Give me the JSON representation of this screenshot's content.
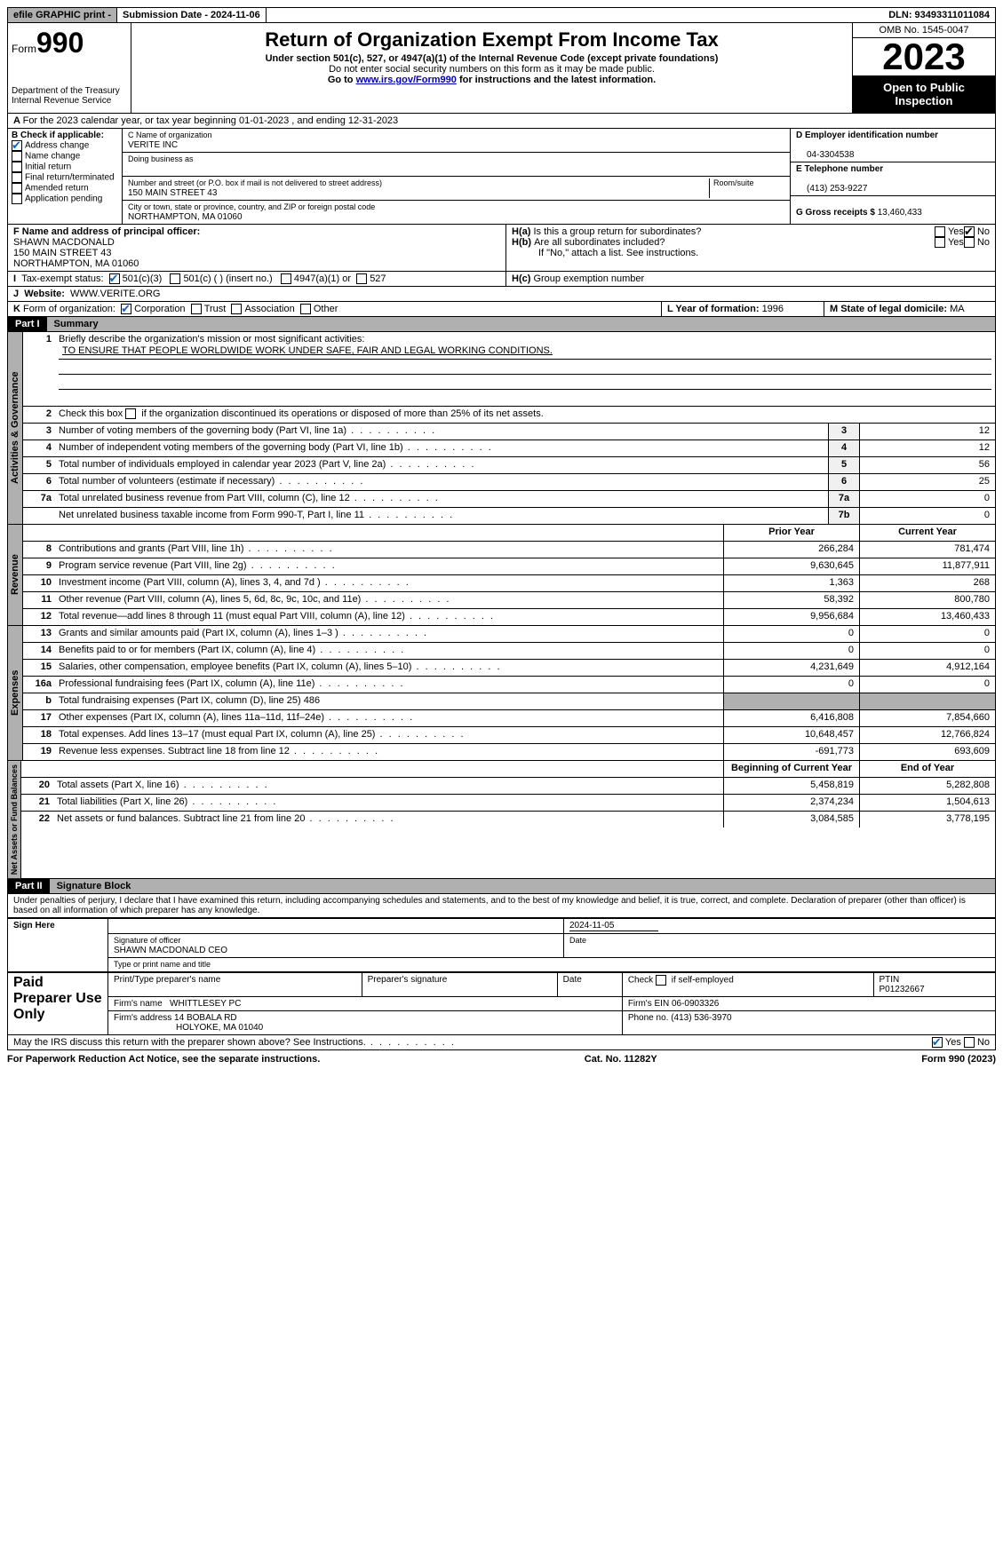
{
  "topbar": {
    "efile": "efile GRAPHIC print -",
    "submission": "Submission Date - 2024-11-06",
    "dln": "DLN: 93493311011084"
  },
  "header": {
    "form_label": "Form",
    "form_number": "990",
    "dept": "Department of the Treasury Internal Revenue Service",
    "title": "Return of Organization Exempt From Income Tax",
    "subtitle": "Under section 501(c), 527, or 4947(a)(1) of the Internal Revenue Code (except private foundations)",
    "warn": "Do not enter social security numbers on this form as it may be made public.",
    "goto_pre": "Go to ",
    "goto_link": "www.irs.gov/Form990",
    "goto_post": " for instructions and the latest information.",
    "omb": "OMB No. 1545-0047",
    "year": "2023",
    "inspect": "Open to Public Inspection"
  },
  "line_a": "For the 2023 calendar year, or tax year beginning 01-01-2023   , and ending 12-31-2023",
  "box_b": {
    "title": "B Check if applicable:",
    "items": [
      "Address change",
      "Name change",
      "Initial return",
      "Final return/terminated",
      "Amended return",
      "Application pending"
    ],
    "checked_idx": 0
  },
  "box_c": {
    "name_label": "C Name of organization",
    "name": "VERITE INC",
    "dba_label": "Doing business as",
    "addr_label": "Number and street (or P.O. box if mail is not delivered to street address)",
    "addr": "150 MAIN STREET 43",
    "room_label": "Room/suite",
    "city_label": "City or town, state or province, country, and ZIP or foreign postal code",
    "city": "NORTHAMPTON, MA  01060"
  },
  "box_d": {
    "label": "D Employer identification number",
    "value": "04-3304538"
  },
  "box_e": {
    "label": "E Telephone number",
    "value": "(413) 253-9227"
  },
  "box_g": {
    "label": "G Gross receipts $ ",
    "value": "13,460,433"
  },
  "box_f": {
    "label": "F  Name and address of principal officer:",
    "lines": [
      "SHAWN MACDONALD",
      "150 MAIN STREET 43",
      "NORTHAMPTON, MA  01060"
    ]
  },
  "box_h": {
    "a": "Is this a group return for subordinates?",
    "b": "Are all subordinates included?",
    "note": "If \"No,\" attach a list. See instructions.",
    "c": "Group exemption number"
  },
  "box_i": {
    "label": "Tax-exempt status:",
    "opts": [
      "501(c)(3)",
      "501(c) (  ) (insert no.)",
      "4947(a)(1) or",
      "527"
    ]
  },
  "box_j": {
    "label": "Website:",
    "value": "WWW.VERITE.ORG"
  },
  "box_k": {
    "label": "Form of organization:",
    "opts": [
      "Corporation",
      "Trust",
      "Association",
      "Other"
    ]
  },
  "box_l": {
    "label": "L Year of formation: ",
    "value": "1996"
  },
  "box_m": {
    "label": "M State of legal domicile: ",
    "value": "MA"
  },
  "part1": {
    "header": "Part I",
    "title": "Summary",
    "mission_label": "Briefly describe the organization's mission or most significant activities:",
    "mission": "TO ENSURE THAT PEOPLE WORLDWIDE WORK UNDER SAFE, FAIR AND LEGAL WORKING CONDITIONS.",
    "line2": "Check this box      if the organization discontinued its operations or disposed of more than 25% of its net assets.",
    "governance": [
      {
        "n": "3",
        "d": "Number of voting members of the governing body (Part VI, line 1a)",
        "b": "3",
        "v": "12"
      },
      {
        "n": "4",
        "d": "Number of independent voting members of the governing body (Part VI, line 1b)",
        "b": "4",
        "v": "12"
      },
      {
        "n": "5",
        "d": "Total number of individuals employed in calendar year 2023 (Part V, line 2a)",
        "b": "5",
        "v": "56"
      },
      {
        "n": "6",
        "d": "Total number of volunteers (estimate if necessary)",
        "b": "6",
        "v": "25"
      },
      {
        "n": "7a",
        "d": "Total unrelated business revenue from Part VIII, column (C), line 12",
        "b": "7a",
        "v": "0"
      },
      {
        "n": "",
        "d": "Net unrelated business taxable income from Form 990-T, Part I, line 11",
        "b": "7b",
        "v": "0"
      }
    ],
    "col_prior": "Prior Year",
    "col_current": "Current Year",
    "revenue": [
      {
        "n": "8",
        "d": "Contributions and grants (Part VIII, line 1h)",
        "p": "266,284",
        "c": "781,474"
      },
      {
        "n": "9",
        "d": "Program service revenue (Part VIII, line 2g)",
        "p": "9,630,645",
        "c": "11,877,911"
      },
      {
        "n": "10",
        "d": "Investment income (Part VIII, column (A), lines 3, 4, and 7d )",
        "p": "1,363",
        "c": "268"
      },
      {
        "n": "11",
        "d": "Other revenue (Part VIII, column (A), lines 5, 6d, 8c, 9c, 10c, and 11e)",
        "p": "58,392",
        "c": "800,780"
      },
      {
        "n": "12",
        "d": "Total revenue—add lines 8 through 11 (must equal Part VIII, column (A), line 12)",
        "p": "9,956,684",
        "c": "13,460,433"
      }
    ],
    "expenses": [
      {
        "n": "13",
        "d": "Grants and similar amounts paid (Part IX, column (A), lines 1–3 )",
        "p": "0",
        "c": "0"
      },
      {
        "n": "14",
        "d": "Benefits paid to or for members (Part IX, column (A), line 4)",
        "p": "0",
        "c": "0"
      },
      {
        "n": "15",
        "d": "Salaries, other compensation, employee benefits (Part IX, column (A), lines 5–10)",
        "p": "4,231,649",
        "c": "4,912,164"
      },
      {
        "n": "16a",
        "d": "Professional fundraising fees (Part IX, column (A), line 11e)",
        "p": "0",
        "c": "0"
      },
      {
        "n": "b",
        "d": "Total fundraising expenses (Part IX, column (D), line 25) 486",
        "p": "",
        "c": "",
        "grey": true
      },
      {
        "n": "17",
        "d": "Other expenses (Part IX, column (A), lines 11a–11d, 11f–24e)",
        "p": "6,416,808",
        "c": "7,854,660"
      },
      {
        "n": "18",
        "d": "Total expenses. Add lines 13–17 (must equal Part IX, column (A), line 25)",
        "p": "10,648,457",
        "c": "12,766,824"
      },
      {
        "n": "19",
        "d": "Revenue less expenses. Subtract line 18 from line 12",
        "p": "-691,773",
        "c": "693,609"
      }
    ],
    "col_begin": "Beginning of Current Year",
    "col_end": "End of Year",
    "netassets": [
      {
        "n": "20",
        "d": "Total assets (Part X, line 16)",
        "p": "5,458,819",
        "c": "5,282,808"
      },
      {
        "n": "21",
        "d": "Total liabilities (Part X, line 26)",
        "p": "2,374,234",
        "c": "1,504,613"
      },
      {
        "n": "22",
        "d": "Net assets or fund balances. Subtract line 21 from line 20",
        "p": "3,084,585",
        "c": "3,778,195"
      }
    ],
    "tabs": [
      "Activities & Governance",
      "Revenue",
      "Expenses",
      "Net Assets or Fund Balances"
    ]
  },
  "part2": {
    "header": "Part II",
    "title": "Signature Block",
    "declaration": "Under penalties of perjury, I declare that I have examined this return, including accompanying schedules and statements, and to the best of my knowledge and belief, it is true, correct, and complete. Declaration of preparer (other than officer) is based on all information of which preparer has any knowledge."
  },
  "sign": {
    "left": "Sign Here",
    "date": "2024-11-05",
    "sig_label": "Signature of officer",
    "officer": "SHAWN MACDONALD CEO",
    "name_label": "Type or print name and title",
    "date_label": "Date"
  },
  "preparer": {
    "left": "Paid Preparer Use Only",
    "h1": "Print/Type preparer's name",
    "h2": "Preparer's signature",
    "h3": "Date",
    "h4_pre": "Check",
    "h4_post": "if self-employed",
    "h5": "PTIN",
    "ptin": "P01232667",
    "firm_label": "Firm's name",
    "firm": "WHITTLESEY PC",
    "ein_label": "Firm's EIN",
    "ein": "06-0903326",
    "addr_label": "Firm's address",
    "addr1": "14 BOBALA RD",
    "addr2": "HOLYOKE, MA  01040",
    "phone_label": "Phone no.",
    "phone": "(413) 536-3970"
  },
  "discuss": "May the IRS discuss this return with the preparer shown above? See Instructions.",
  "footer": {
    "left": "For Paperwork Reduction Act Notice, see the separate instructions.",
    "mid": "Cat. No. 11282Y",
    "right_pre": "Form ",
    "right_bold": "990",
    "right_post": " (2023)"
  }
}
